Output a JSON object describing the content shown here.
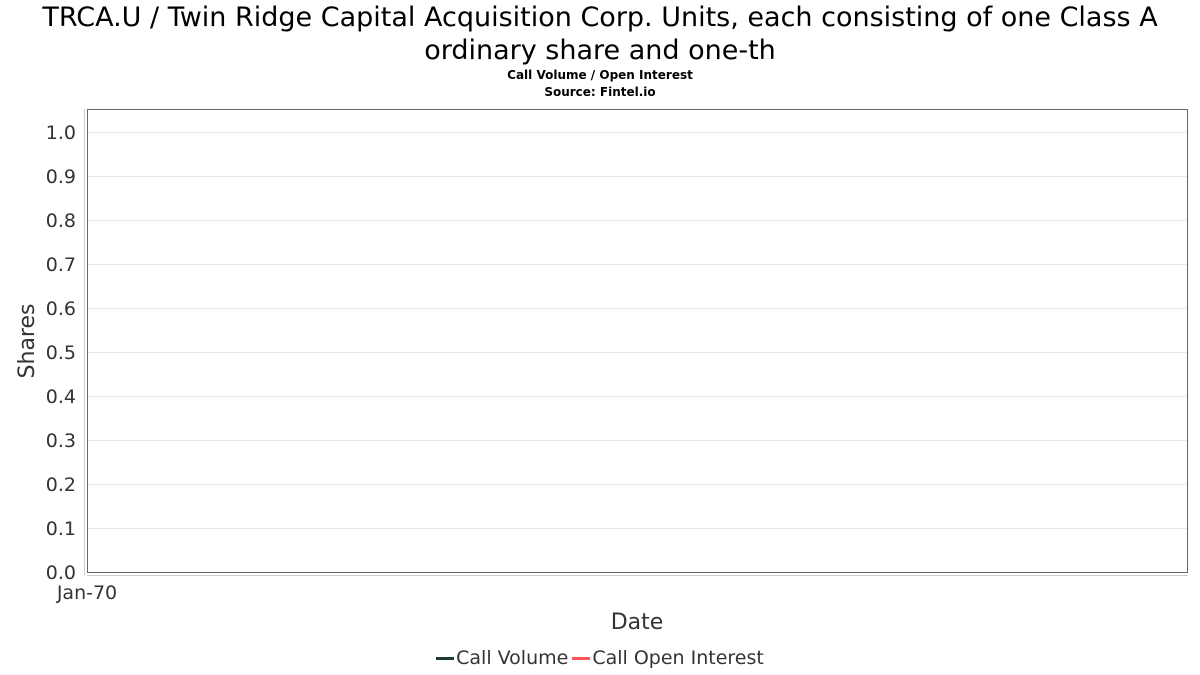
{
  "title_line1": "TRCA.U / Twin Ridge Capital Acquisition Corp. Units, each consisting of one Class A",
  "title_line2": "ordinary share and one-th",
  "subtitle": "Call Volume / Open Interest",
  "source": "Source: Fintel.io",
  "chart_data": {
    "type": "line",
    "title": "TRCA.U / Twin Ridge Capital Acquisition Corp. Units, each consisting of one Class A ordinary share and one-th",
    "subtitle": "Call Volume / Open Interest",
    "xlabel": "Date",
    "ylabel": "Shares",
    "x_ticks": [
      "Jan-70"
    ],
    "y_ticks": [
      "0.0",
      "0.1",
      "0.2",
      "0.3",
      "0.4",
      "0.5",
      "0.6",
      "0.7",
      "0.8",
      "0.9",
      "1.0"
    ],
    "ylim": [
      0,
      1.05
    ],
    "grid": true,
    "legend_position": "bottom",
    "series": [
      {
        "name": "Call Volume",
        "color": "#1f3a2e",
        "values": []
      },
      {
        "name": "Call Open Interest",
        "color": "#ff5555",
        "values": []
      }
    ]
  }
}
